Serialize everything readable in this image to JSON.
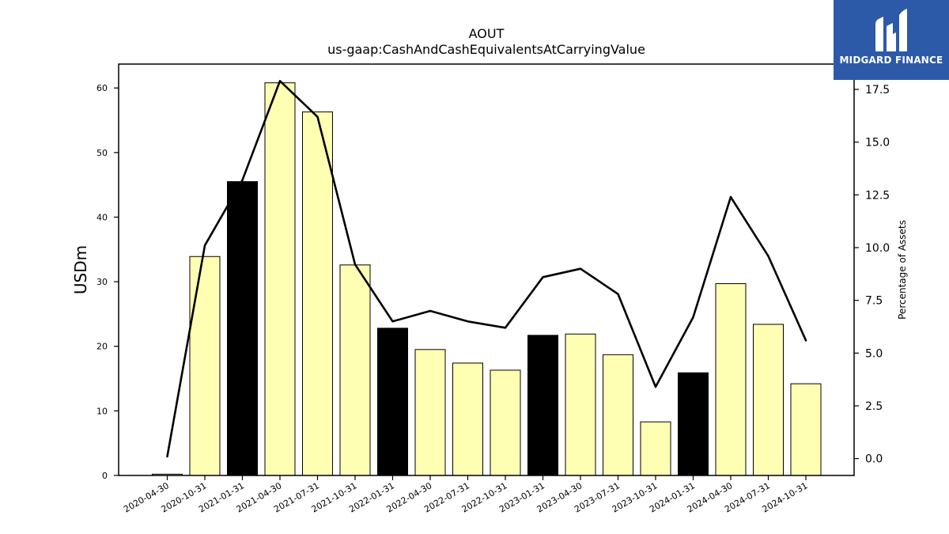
{
  "chart_data": {
    "type": "bar",
    "title": "AOUT",
    "subtitle": "us-gaap:CashAndCashEquivalentsAtCarryingValue",
    "ylabel": "USDm",
    "y2label": "Percentage of Assets",
    "ylim": [
      0,
      63.7
    ],
    "y2lim": [
      -0.8,
      18.7
    ],
    "yticks": [
      0,
      10,
      20,
      30,
      40,
      50,
      60
    ],
    "y2ticks": [
      0.0,
      2.5,
      5.0,
      7.5,
      10.0,
      12.5,
      15.0,
      17.5
    ],
    "categories": [
      "2020-04-30",
      "2020-10-31",
      "2021-01-31",
      "2021-04-30",
      "2021-07-31",
      "2021-10-31",
      "2022-01-31",
      "2022-04-30",
      "2022-07-31",
      "2022-10-31",
      "2023-01-31",
      "2023-04-30",
      "2023-07-31",
      "2023-10-31",
      "2024-01-31",
      "2024-04-30",
      "2024-07-31",
      "2024-10-31"
    ],
    "series": [
      {
        "type": "bar",
        "values": [
          0.2,
          33.9,
          45.5,
          60.8,
          56.3,
          32.6,
          22.8,
          19.5,
          17.4,
          16.3,
          21.7,
          21.9,
          18.7,
          8.3,
          15.9,
          29.7,
          23.4,
          14.2
        ],
        "colors": [
          "#ffffb3",
          "#ffffb3",
          "#000000",
          "#ffffb3",
          "#ffffb3",
          "#ffffb3",
          "#000000",
          "#ffffb3",
          "#ffffb3",
          "#ffffb3",
          "#000000",
          "#ffffb3",
          "#ffffb3",
          "#ffffb3",
          "#000000",
          "#ffffb3",
          "#ffffb3",
          "#ffffb3"
        ]
      },
      {
        "type": "line",
        "axis": "right",
        "color": "#000000",
        "values": [
          0.1,
          10.1,
          13.2,
          17.9,
          16.2,
          9.2,
          6.5,
          7.0,
          6.5,
          6.2,
          8.6,
          9.0,
          7.8,
          3.4,
          6.7,
          12.4,
          9.6,
          5.6
        ]
      }
    ],
    "grid": false,
    "legend": "none"
  },
  "logo": {
    "text": "MIDGARD FINANCE",
    "color": "#2c5aa9"
  }
}
